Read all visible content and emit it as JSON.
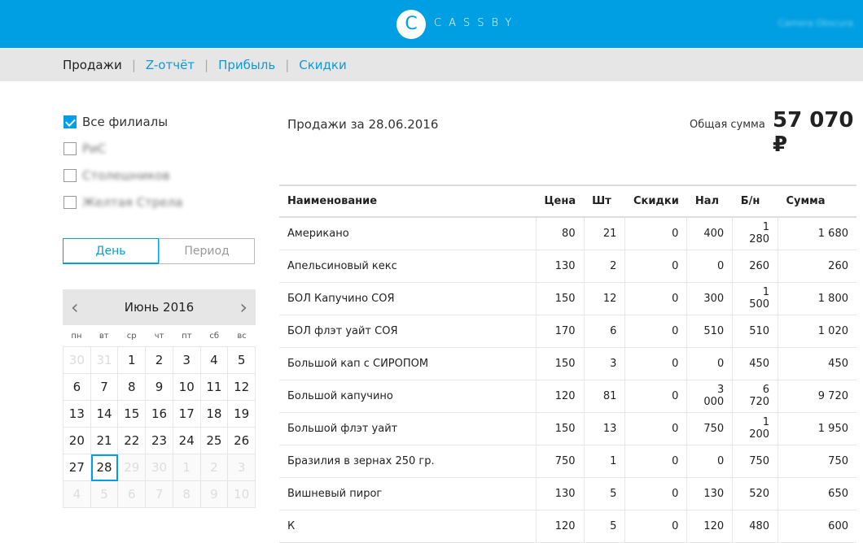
{
  "header": {
    "logo_letter": "C",
    "brand": "CASSBY",
    "user": "Camera Obscura",
    "color": "#009fe3"
  },
  "nav": [
    {
      "label": "Продажи",
      "active": true
    },
    {
      "label": "Z-отчёт"
    },
    {
      "label": "Прибыль"
    },
    {
      "label": "Скидки"
    }
  ],
  "nav_separator": "|",
  "branches": [
    {
      "label": "Все филиалы",
      "checked": true
    },
    {
      "label": "РиС",
      "checked": false,
      "blurred": true
    },
    {
      "label": "Столешников",
      "checked": false,
      "blurred": true
    },
    {
      "label": "Желтая Стрела",
      "checked": false,
      "blurred": true
    }
  ],
  "mode": {
    "day": "День",
    "period": "Период",
    "selected": "day"
  },
  "calendar": {
    "title": "Июнь 2016",
    "prev": "‹",
    "next": "›",
    "dow": [
      "пн",
      "вт",
      "ср",
      "чт",
      "пт",
      "сб",
      "вс"
    ],
    "days": [
      [
        "30",
        "other"
      ],
      [
        "31",
        "other"
      ],
      [
        "1",
        ""
      ],
      [
        "2",
        ""
      ],
      [
        "3",
        ""
      ],
      [
        "4",
        ""
      ],
      [
        "5",
        ""
      ],
      [
        "6",
        ""
      ],
      [
        "7",
        ""
      ],
      [
        "8",
        ""
      ],
      [
        "9",
        ""
      ],
      [
        "10",
        ""
      ],
      [
        "11",
        ""
      ],
      [
        "12",
        ""
      ],
      [
        "13",
        ""
      ],
      [
        "14",
        ""
      ],
      [
        "15",
        ""
      ],
      [
        "16",
        ""
      ],
      [
        "17",
        ""
      ],
      [
        "18",
        ""
      ],
      [
        "19",
        ""
      ],
      [
        "20",
        ""
      ],
      [
        "21",
        ""
      ],
      [
        "22",
        ""
      ],
      [
        "23",
        ""
      ],
      [
        "24",
        ""
      ],
      [
        "25",
        ""
      ],
      [
        "26",
        ""
      ],
      [
        "27",
        ""
      ],
      [
        "28",
        "sel"
      ],
      [
        "29",
        "future"
      ],
      [
        "30",
        "future"
      ],
      [
        "1",
        "future"
      ],
      [
        "2",
        "future"
      ],
      [
        "3",
        "future"
      ],
      [
        "4",
        "future"
      ],
      [
        "5",
        "future"
      ],
      [
        "6",
        "future"
      ],
      [
        "7",
        "future"
      ],
      [
        "8",
        "future"
      ],
      [
        "9",
        "future"
      ],
      [
        "10",
        "future"
      ]
    ]
  },
  "main": {
    "title": "Продажи за 28.06.2016",
    "total_label": "Общая сумма",
    "total_value": "57 070 ₽"
  },
  "table": {
    "columns": [
      "Наименование",
      "Цена",
      "Шт",
      "Скидки",
      "Нал",
      "Б/н",
      "Сумма"
    ],
    "rows": [
      [
        "Американо",
        "80",
        "21",
        "0",
        "400",
        "1 280",
        "1 680"
      ],
      [
        "Апельсиновый кекс",
        "130",
        "2",
        "0",
        "0",
        "260",
        "260"
      ],
      [
        "БОЛ Капучино СОЯ",
        "150",
        "12",
        "0",
        "300",
        "1 500",
        "1 800"
      ],
      [
        "БОЛ флэт уайт СОЯ",
        "170",
        "6",
        "0",
        "510",
        "510",
        "1 020"
      ],
      [
        "Большой кап с СИРОПОМ",
        "150",
        "3",
        "0",
        "0",
        "450",
        "450"
      ],
      [
        "Большой капучино",
        "120",
        "81",
        "0",
        "3 000",
        "6 720",
        "9 720"
      ],
      [
        "Большой флэт уайт",
        "150",
        "13",
        "0",
        "750",
        "1 200",
        "1 950"
      ],
      [
        "Бразилия в зернах 250 гр.",
        "750",
        "1",
        "0",
        "0",
        "750",
        "750"
      ],
      [
        "Вишневый пирог",
        "130",
        "5",
        "0",
        "130",
        "520",
        "650"
      ],
      [
        "К",
        "120",
        "5",
        "0",
        "120",
        "480",
        "600"
      ]
    ]
  }
}
